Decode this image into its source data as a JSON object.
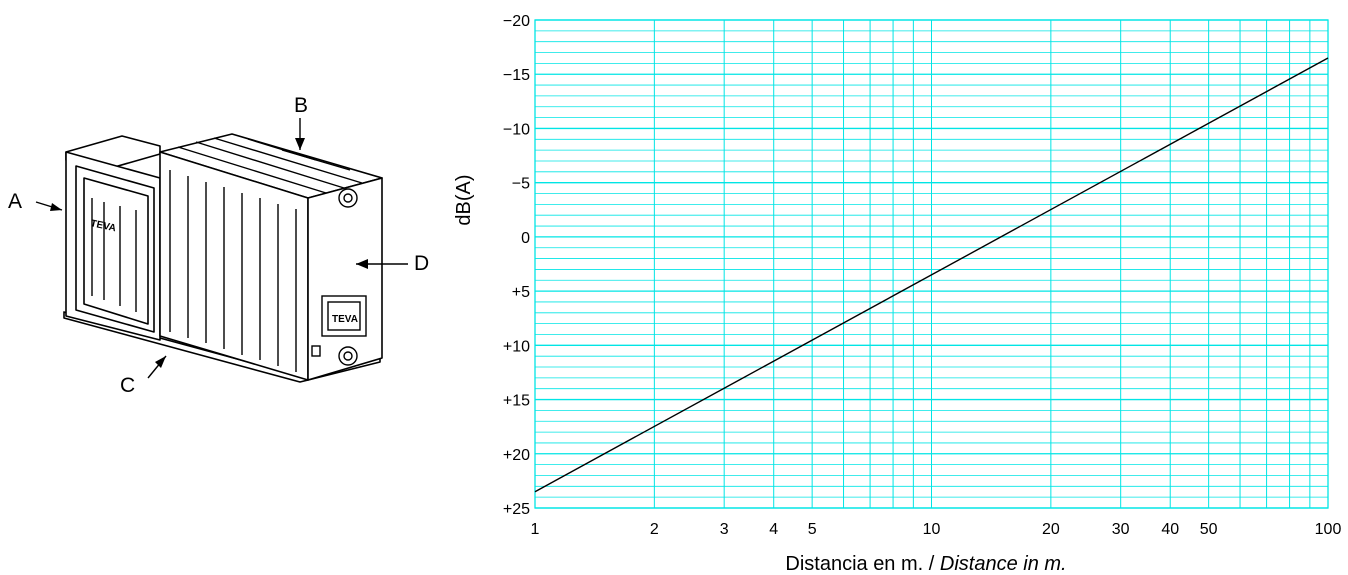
{
  "figure": {
    "callouts": [
      {
        "letter": "A"
      },
      {
        "letter": "B"
      },
      {
        "letter": "C"
      },
      {
        "letter": "D"
      }
    ],
    "brand_text": "TEVA",
    "colors": {
      "grid": "#00e5e5",
      "line": "#000000",
      "drawing": "#000000"
    }
  },
  "chart_data": {
    "type": "line",
    "title": "",
    "xlabel": "Distancia en m. / ",
    "xlabel_italic": "Distance in  m.",
    "ylabel": "dB(A)",
    "x_scale": "log",
    "xlim": [
      1,
      100
    ],
    "ylim": [
      -20,
      25
    ],
    "y_inverted": true,
    "grid": true,
    "x_ticks": [
      1,
      2,
      3,
      4,
      5,
      10,
      20,
      30,
      40,
      50,
      100
    ],
    "x_tick_labels": [
      "1",
      "2",
      "3",
      "4",
      "5",
      "10",
      "20",
      "30",
      "40",
      "50",
      "100"
    ],
    "y_ticks": [
      -20,
      -15,
      -10,
      -5,
      0,
      5,
      10,
      15,
      20,
      25
    ],
    "y_tick_labels": [
      "−20",
      "−15",
      "−10",
      "−5",
      "0",
      "+5",
      "+10",
      "+15",
      "+20",
      "+25"
    ],
    "series": [
      {
        "x": [
          1,
          100
        ],
        "y": [
          23.5,
          -16.5
        ]
      }
    ]
  }
}
